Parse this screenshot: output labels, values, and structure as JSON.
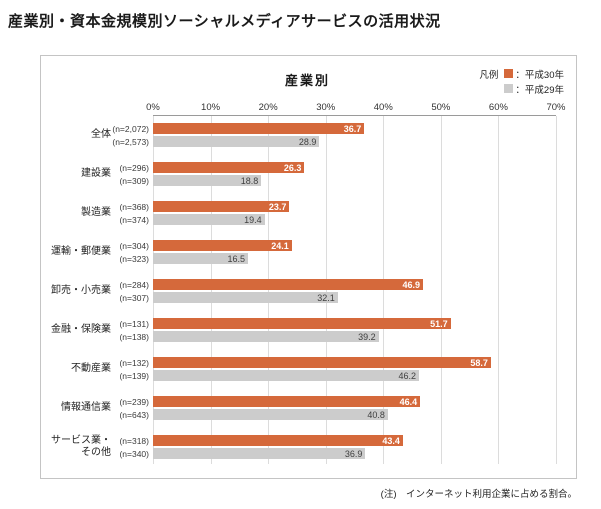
{
  "page": {
    "title": "産業別・資本金規模別ソーシャルメディアサービスの活用状況",
    "note": "(注)　インターネット利用企業に占める割合。"
  },
  "chart_data": {
    "type": "bar",
    "orientation": "horizontal",
    "title": "産業別",
    "legend_label": "凡例",
    "legend_position": "top-right",
    "grid": true,
    "axis": {
      "unit": "%",
      "min": 0,
      "max": 70,
      "ticks": [
        "0%",
        "10%",
        "20%",
        "30%",
        "40%",
        "50%",
        "60%",
        "70%"
      ],
      "tick_values": [
        0,
        10,
        20,
        30,
        40,
        50,
        60,
        70
      ]
    },
    "colors": {
      "h30": "#d5693b",
      "h29": "#cccccc"
    },
    "series": [
      {
        "name": "平成30年",
        "legend_text": "：平成30年",
        "color_key": "h30"
      },
      {
        "name": "平成29年",
        "legend_text": "：平成29年",
        "color_key": "h29"
      }
    ],
    "categories": [
      {
        "label": "全体",
        "rows": [
          {
            "n": "(n=2,072)",
            "value": 36.7
          },
          {
            "n": "(n=2,573)",
            "value": 28.9
          }
        ]
      },
      {
        "label": "建設業",
        "rows": [
          {
            "n": "(n=296)",
            "value": 26.3
          },
          {
            "n": "(n=309)",
            "value": 18.8
          }
        ]
      },
      {
        "label": "製造業",
        "rows": [
          {
            "n": "(n=368)",
            "value": 23.7
          },
          {
            "n": "(n=374)",
            "value": 19.4
          }
        ]
      },
      {
        "label": "運輸・郵便業",
        "rows": [
          {
            "n": "(n=304)",
            "value": 24.1
          },
          {
            "n": "(n=323)",
            "value": 16.5
          }
        ]
      },
      {
        "label": "卸売・小売業",
        "rows": [
          {
            "n": "(n=284)",
            "value": 46.9
          },
          {
            "n": "(n=307)",
            "value": 32.1
          }
        ]
      },
      {
        "label": "金融・保険業",
        "rows": [
          {
            "n": "(n=131)",
            "value": 51.7
          },
          {
            "n": "(n=138)",
            "value": 39.2
          }
        ]
      },
      {
        "label": "不動産業",
        "rows": [
          {
            "n": "(n=132)",
            "value": 58.7
          },
          {
            "n": "(n=139)",
            "value": 46.2
          }
        ]
      },
      {
        "label": "情報通信業",
        "rows": [
          {
            "n": "(n=239)",
            "value": 46.4
          },
          {
            "n": "(n=643)",
            "value": 40.8
          }
        ]
      },
      {
        "label": "サービス業・\nその他",
        "rows": [
          {
            "n": "(n=318)",
            "value": 43.4
          },
          {
            "n": "(n=340)",
            "value": 36.9
          }
        ]
      }
    ]
  }
}
